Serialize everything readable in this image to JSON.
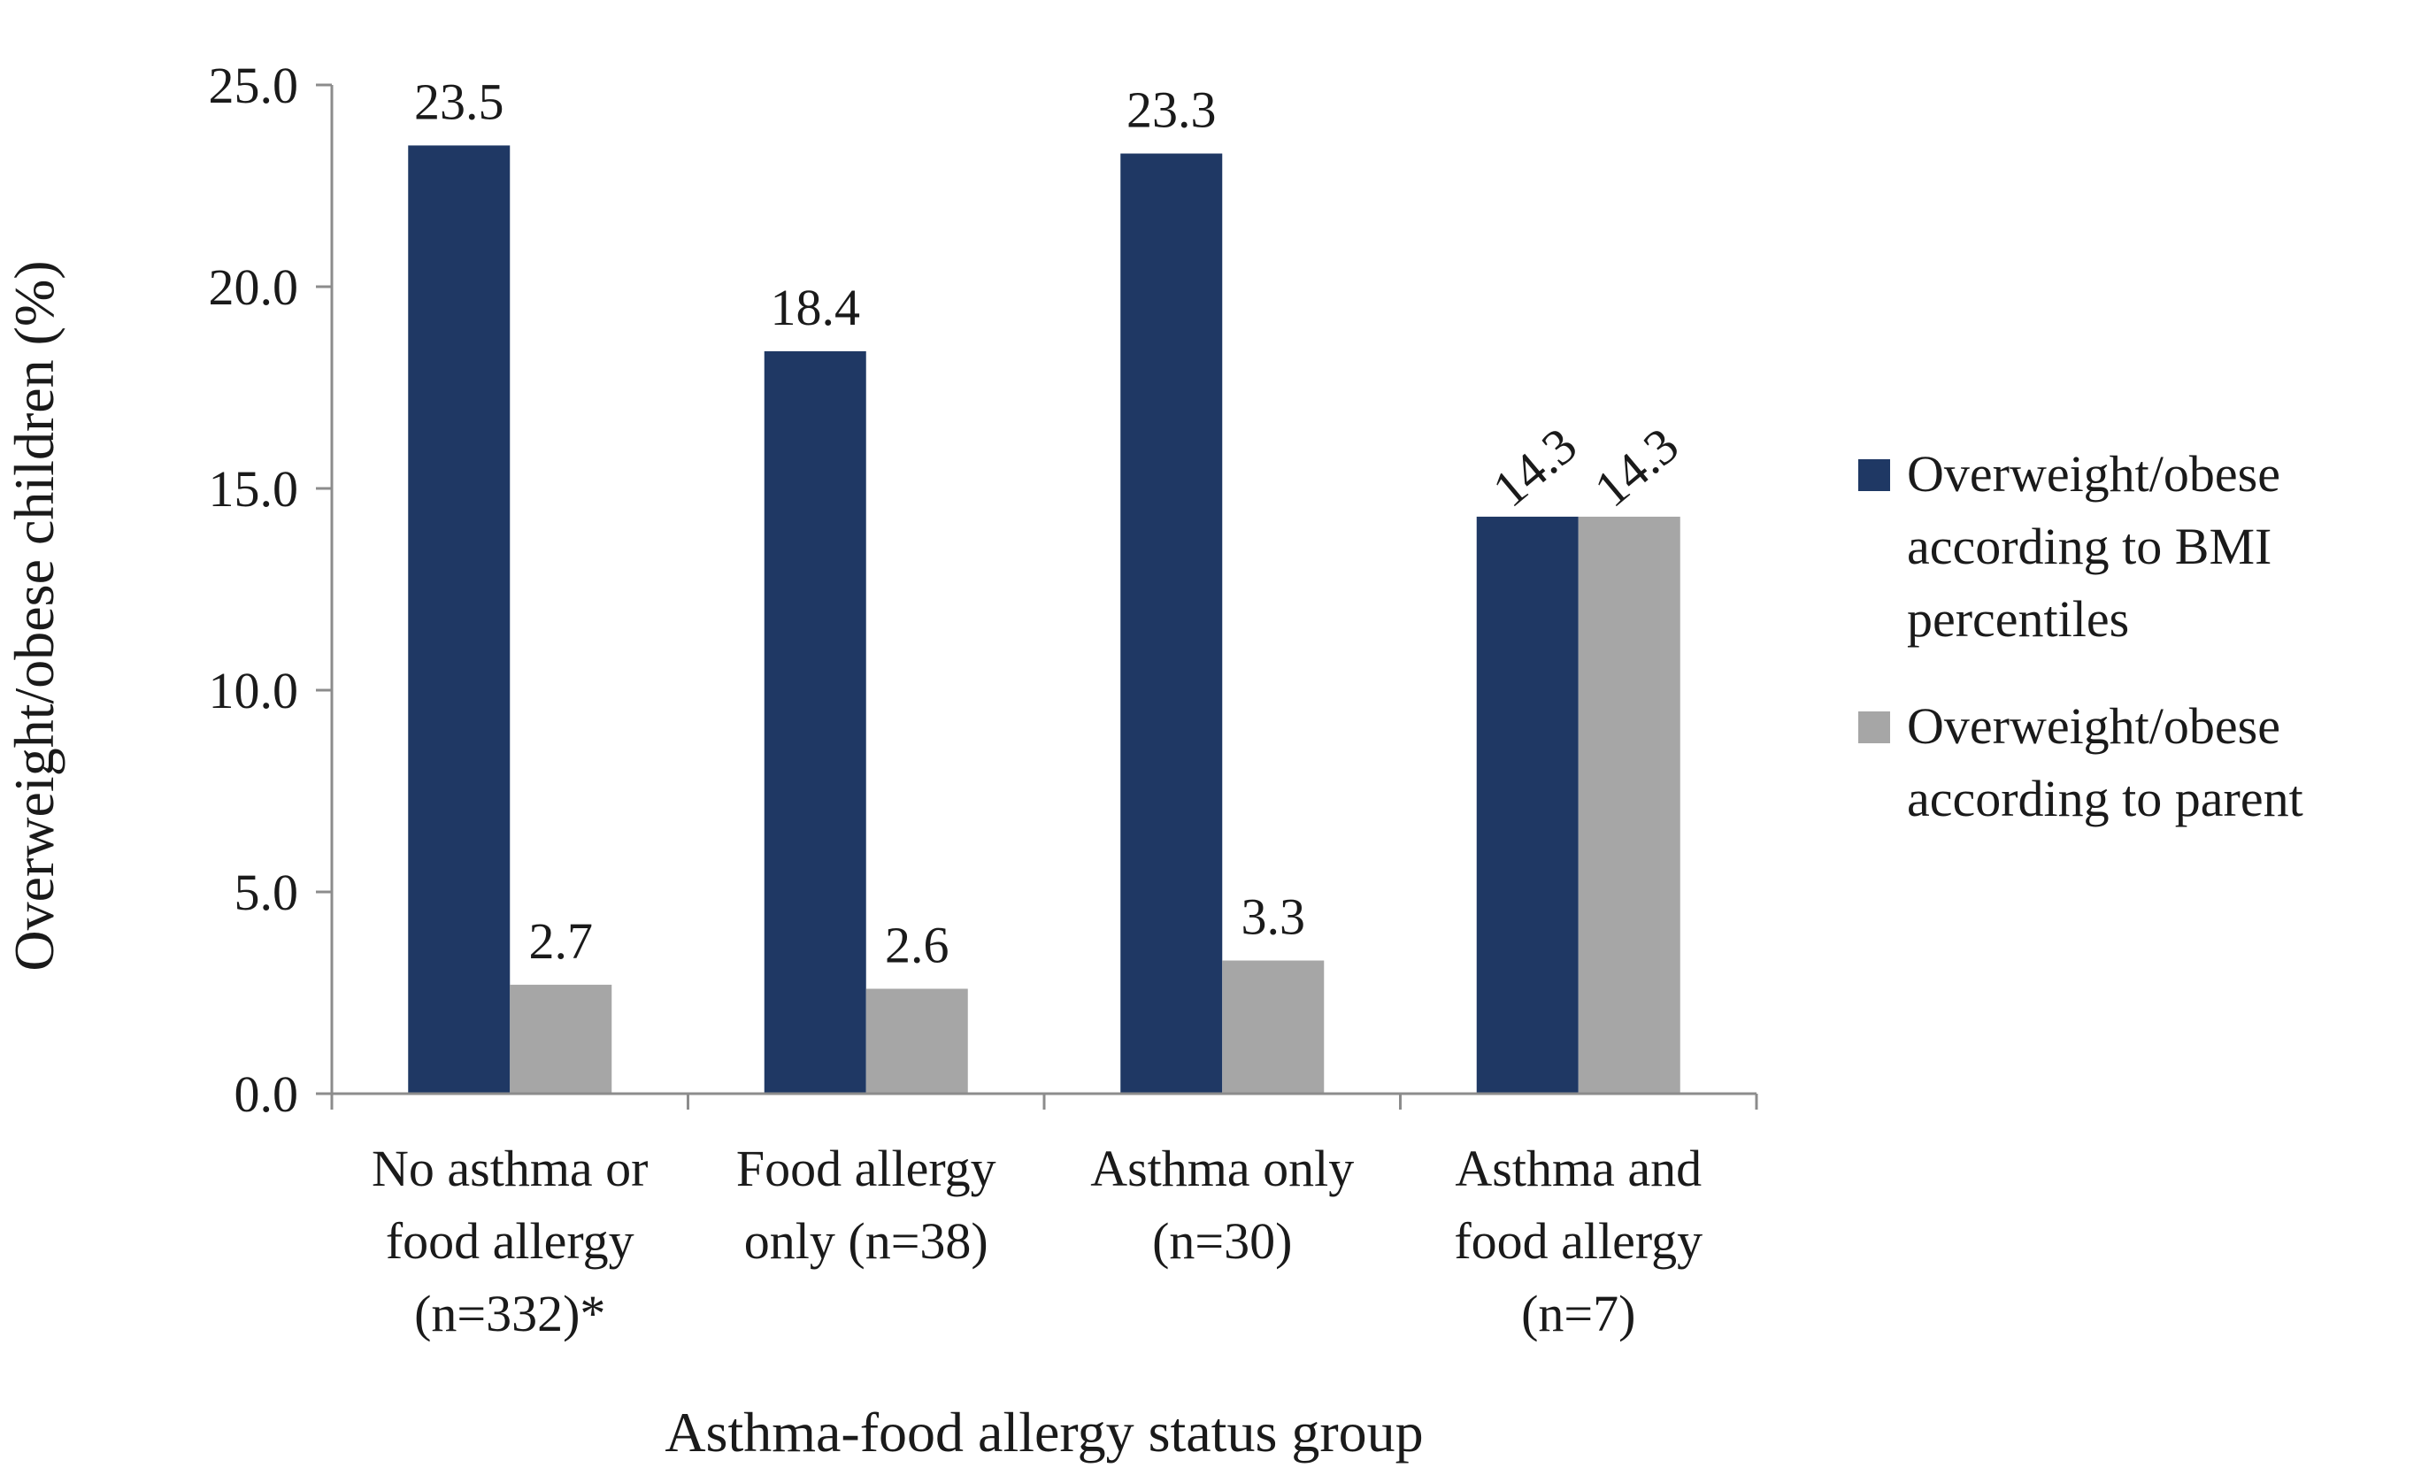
{
  "chart_data": {
    "type": "bar",
    "title": "",
    "xlabel": "Asthma-food allergy status group",
    "ylabel": "Overweight/obese children (%)",
    "ylim": [
      0,
      25
    ],
    "yticks": [
      "0.0",
      "5.0",
      "10.0",
      "15.0",
      "20.0",
      "25.0"
    ],
    "ytick_values": [
      0,
      5,
      10,
      15,
      20,
      25
    ],
    "grid": false,
    "legend_position": "right",
    "categories": [
      [
        "No asthma or",
        "food allergy",
        "(n=332)*"
      ],
      [
        "Food allergy",
        "only (n=38)"
      ],
      [
        "Asthma only",
        "(n=30)"
      ],
      [
        "Asthma and",
        "food allergy",
        "(n=7)"
      ]
    ],
    "series": [
      {
        "name": [
          "Overweight/obese",
          "according to BMI",
          "percentiles"
        ],
        "color": "#1f3864",
        "values": [
          23.5,
          18.4,
          23.3,
          14.3
        ],
        "labels": [
          "23.5",
          "18.4",
          "23.3",
          "14.3"
        ]
      },
      {
        "name": [
          "Overweight/obese",
          "according to parent"
        ],
        "color": "#a6a6a6",
        "values": [
          2.7,
          2.6,
          3.3,
          14.3
        ],
        "labels": [
          "2.7",
          "2.6",
          "3.3",
          "14.3"
        ]
      }
    ]
  }
}
